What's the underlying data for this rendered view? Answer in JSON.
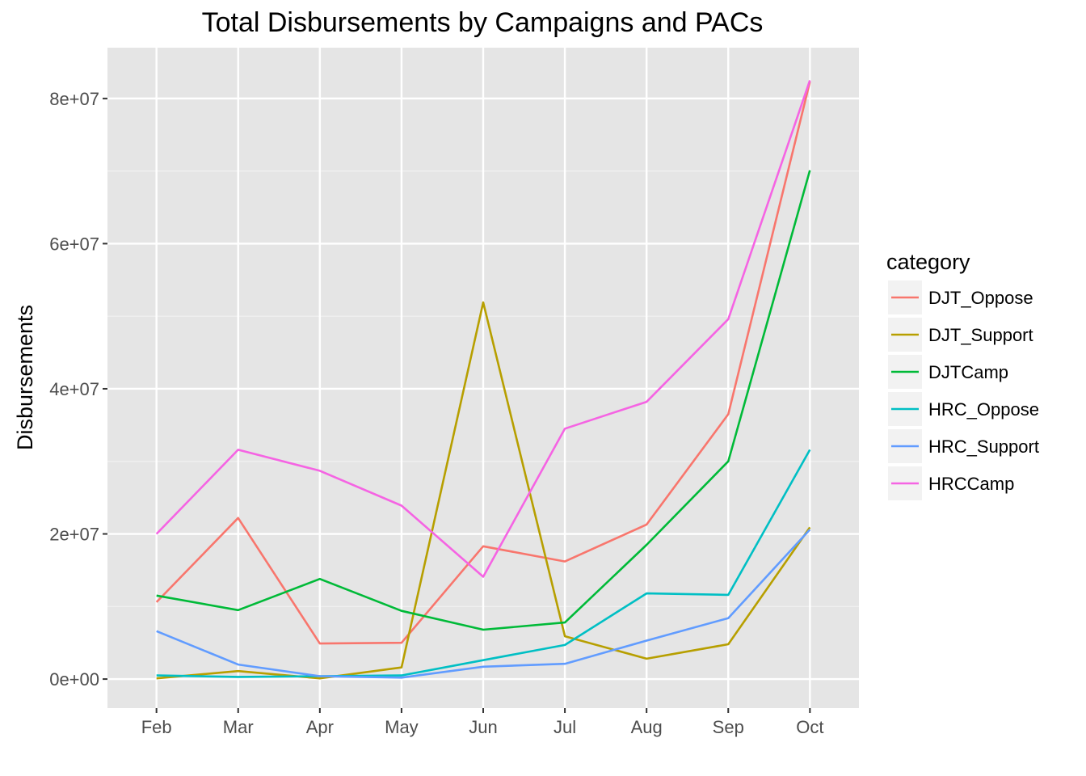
{
  "chart_data": {
    "type": "line",
    "title": "Total Disbursements by Campaigns and PACs",
    "xlabel": "",
    "ylabel": "Disbursements",
    "categories": [
      "Feb",
      "Mar",
      "Apr",
      "May",
      "Jun",
      "Jul",
      "Aug",
      "Sep",
      "Oct"
    ],
    "ylim": [
      -4000000,
      87000000
    ],
    "yticks": [
      0,
      20000000,
      40000000,
      60000000,
      80000000
    ],
    "ytick_labels": [
      "0e+00",
      "2e+07",
      "4e+07",
      "6e+07",
      "8e+07"
    ],
    "grid": true,
    "panel_background": "#e5e5e5",
    "legend": {
      "title": "category",
      "position": "right"
    },
    "series": [
      {
        "name": "DJT_Oppose",
        "color": "#f8766d",
        "values": [
          10600000,
          22200000,
          4900000,
          5000000,
          18300000,
          16200000,
          21300000,
          36500000,
          82300000
        ]
      },
      {
        "name": "DJT_Support",
        "color": "#b79f00",
        "values": [
          100000,
          1100000,
          100000,
          1600000,
          51900000,
          5900000,
          2800000,
          4800000,
          20900000
        ]
      },
      {
        "name": "DJTCamp",
        "color": "#00ba38",
        "values": [
          11500000,
          9500000,
          13800000,
          9400000,
          6800000,
          7800000,
          18500000,
          30000000,
          70100000
        ]
      },
      {
        "name": "HRC_Oppose",
        "color": "#00bfc4",
        "values": [
          500000,
          300000,
          400000,
          500000,
          2600000,
          4700000,
          11800000,
          11600000,
          31600000
        ]
      },
      {
        "name": "HRC_Support",
        "color": "#619cff",
        "values": [
          6600000,
          2000000,
          400000,
          200000,
          1700000,
          2100000,
          5300000,
          8400000,
          20600000
        ]
      },
      {
        "name": "HRCCamp",
        "color": "#f564e3",
        "values": [
          20000000,
          31600000,
          28700000,
          23900000,
          14100000,
          34500000,
          38200000,
          49600000,
          82500000
        ]
      }
    ]
  }
}
